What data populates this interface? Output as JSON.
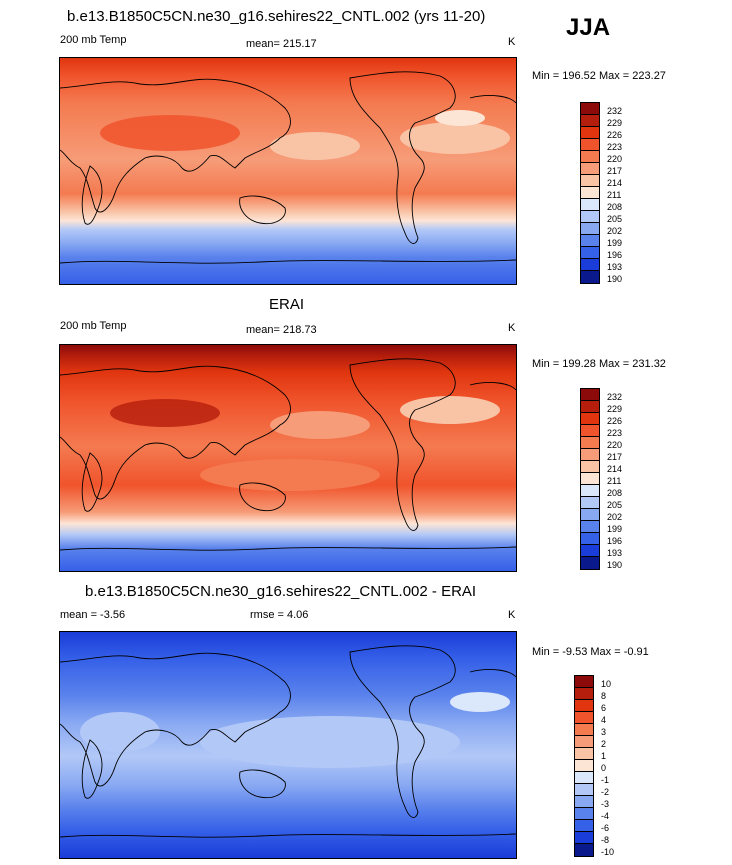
{
  "season_label": "JJA",
  "panels": [
    {
      "title": "b.e13.B1850C5CN.ne30_g16.sehires22_CNTL.002 (yrs 11-20)",
      "left_label": "200 mb Temp",
      "center_label": "mean= 215.17",
      "units": "K",
      "minmax": "Min = 196.52 Max = 223.27",
      "colorbar_labels": [
        "232",
        "229",
        "226",
        "223",
        "220",
        "217",
        "214",
        "211",
        "208",
        "205",
        "202",
        "199",
        "196",
        "193",
        "190"
      ],
      "colorbar_colors": [
        "#8c0a0a",
        "#b51e0c",
        "#e0350f",
        "#f0542c",
        "#f47a50",
        "#f69c78",
        "#f9c3a6",
        "#fde5d6",
        "#dbe7fb",
        "#b2c8f7",
        "#88a8f2",
        "#5a82ec",
        "#3560e8",
        "#1a3cd8",
        "#0a1a8c"
      ]
    },
    {
      "title": "ERAI",
      "left_label": "200 mb Temp",
      "center_label": "mean= 218.73",
      "units": "K",
      "minmax": "Min = 199.28 Max = 231.32",
      "colorbar_labels": [
        "232",
        "229",
        "226",
        "223",
        "220",
        "217",
        "214",
        "211",
        "208",
        "205",
        "202",
        "199",
        "196",
        "193",
        "190"
      ],
      "colorbar_colors": [
        "#8c0a0a",
        "#b51e0c",
        "#e0350f",
        "#f0542c",
        "#f47a50",
        "#f69c78",
        "#f9c3a6",
        "#fde5d6",
        "#dbe7fb",
        "#b2c8f7",
        "#88a8f2",
        "#5a82ec",
        "#3560e8",
        "#1a3cd8",
        "#0a1a8c"
      ]
    },
    {
      "title": "b.e13.B1850C5CN.ne30_g16.sehires22_CNTL.002 - ERAI",
      "left_label": "mean =  -3.56",
      "center_label": "rmse =   4.06",
      "units": "K",
      "minmax": "Min =  -9.53 Max =  -0.91",
      "colorbar_labels": [
        "10",
        "8",
        "6",
        "4",
        "3",
        "2",
        "1",
        "0",
        "-1",
        "-2",
        "-3",
        "-4",
        "-6",
        "-8",
        "-10"
      ],
      "colorbar_colors": [
        "#8c0a0a",
        "#b51e0c",
        "#e0350f",
        "#f0542c",
        "#f47a50",
        "#f69c78",
        "#f9c3a6",
        "#fde5d6",
        "#dbe7fb",
        "#b2c8f7",
        "#88a8f2",
        "#5a82ec",
        "#3560e8",
        "#1a3cd8",
        "#0a1a8c"
      ]
    }
  ]
}
